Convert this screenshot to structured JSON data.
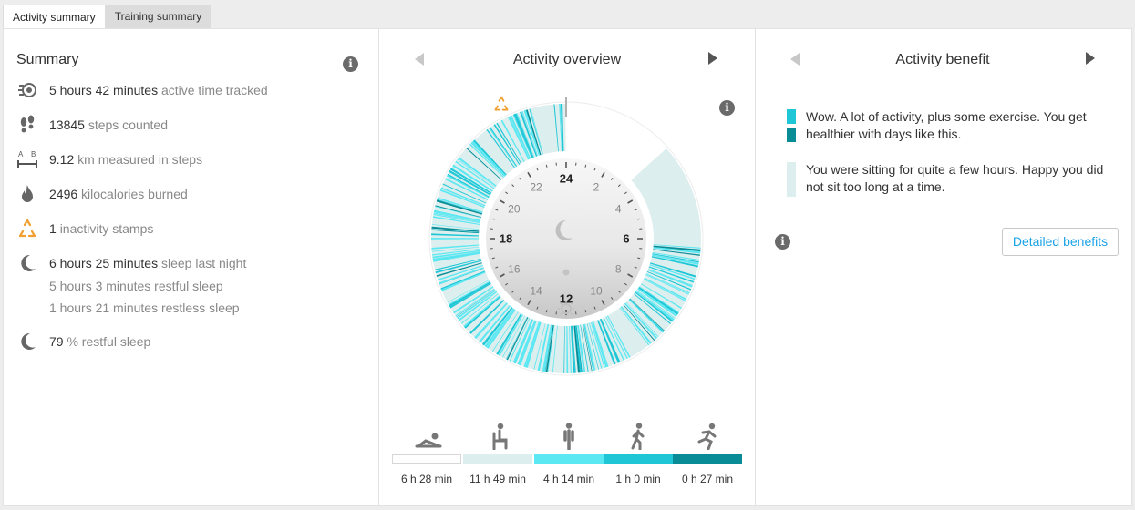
{
  "tabs": [
    {
      "label": "Activity summary",
      "active": true
    },
    {
      "label": "Training summary",
      "active": false
    }
  ],
  "summary": {
    "title": "Summary",
    "info_icon": "info-icon",
    "items": [
      {
        "icon": "activity-time-icon",
        "value": "5 hours 42 minutes",
        "label": "active time tracked"
      },
      {
        "icon": "steps-icon",
        "value": "13845",
        "label": "steps counted"
      },
      {
        "icon": "distance-icon",
        "value": "9.12",
        "label": "km measured in steps"
      },
      {
        "icon": "flame-icon",
        "value": "2496",
        "label": "kilocalories burned"
      },
      {
        "icon": "inactivity-stamp-icon",
        "value": "1",
        "label": "inactivity stamps"
      },
      {
        "icon": "moon-icon",
        "value": "6 hours 25 minutes",
        "label": "sleep last night"
      },
      {
        "icon": "moon-icon",
        "value": "79",
        "label": "% restful sleep"
      }
    ],
    "sleep_details": [
      "5 hours 3 minutes restful sleep",
      "1 hours 21 minutes restless sleep"
    ]
  },
  "overview": {
    "title": "Activity overview",
    "clock_numbers": [
      "24",
      "2",
      "4",
      "6",
      "8",
      "10",
      "12",
      "14",
      "16",
      "18",
      "20",
      "22"
    ],
    "legend": [
      {
        "icon": "resting-icon",
        "duration": "6 h 28 min",
        "color": "#ffffff"
      },
      {
        "icon": "sitting-icon",
        "duration": "11 h 49 min",
        "color": "#ddeeee"
      },
      {
        "icon": "standing-icon",
        "duration": "4 h 14 min",
        "color": "#5ce8f2"
      },
      {
        "icon": "walking-icon",
        "duration": "1 h 0 min",
        "color": "#1fc7d6"
      },
      {
        "icon": "running-icon",
        "duration": "0 h 27 min",
        "color": "#0a8c96"
      }
    ]
  },
  "benefit": {
    "title": "Activity benefit",
    "messages": [
      {
        "text": "Wow. A lot of activity, plus some exercise. You get healthier with days like this.",
        "colors": [
          "#1fc7d6",
          "#0a8c96"
        ]
      },
      {
        "text": "You were sitting for quite a few hours. Happy you did not sit too long at a time.",
        "colors": [
          "#ddeeee"
        ]
      }
    ],
    "button_label": "Detailed benefits"
  },
  "colors": {
    "accent": "#1aa3e8",
    "sitting": "#ddeeee",
    "standing": "#5ce8f2",
    "walking": "#1fc7d6",
    "running": "#0a8c96",
    "stamp": "#f0a030"
  }
}
